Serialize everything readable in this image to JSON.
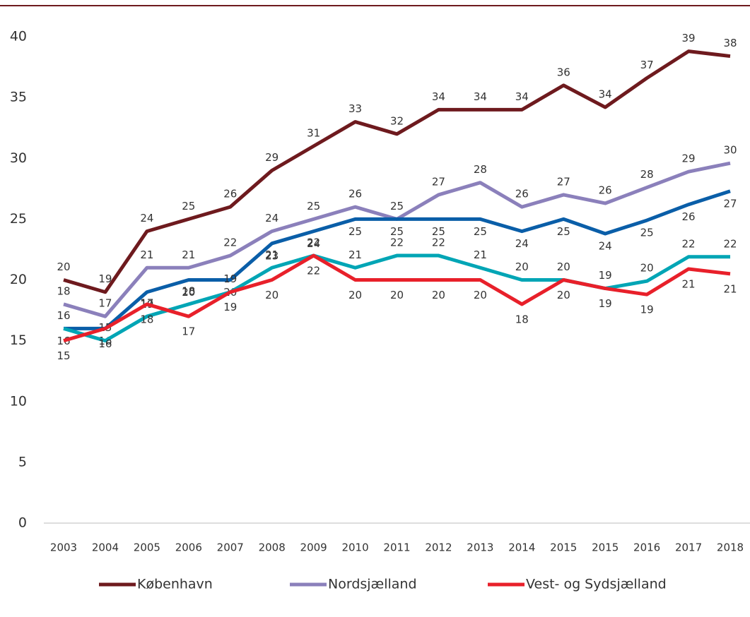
{
  "chart_data": {
    "type": "line",
    "categories": [
      "2003",
      "2004",
      "2005",
      "2006",
      "2007",
      "2008",
      "2009",
      "2010",
      "2011",
      "2012",
      "2013",
      "2014",
      "2015",
      "2015",
      "2016",
      "2017",
      "2018"
    ],
    "ylim": [
      0,
      40
    ],
    "yticks": [
      0,
      5,
      10,
      15,
      20,
      25,
      30,
      35,
      40
    ],
    "grid": false,
    "legend": "bottom",
    "series": [
      {
        "name": "København",
        "color": "#6e1a1e",
        "values": [
          20,
          19,
          24,
          25,
          26,
          29,
          31,
          33,
          32,
          34,
          34,
          34,
          36,
          34.2,
          36.6,
          38.8,
          38.4
        ],
        "value_labels": [
          "20",
          "19",
          "24",
          "25",
          "26",
          "29",
          "31",
          "33",
          "32",
          "34",
          "34",
          "34",
          "36",
          "34",
          "37",
          "39",
          "38"
        ]
      },
      {
        "name": "Nordsjælland",
        "color": "#8b80bb",
        "values": [
          18,
          17,
          21,
          21,
          22,
          24,
          25,
          26,
          25,
          27,
          28,
          26,
          27,
          26.3,
          27.6,
          28.9,
          29.6
        ],
        "value_labels": [
          "18",
          "17",
          "21",
          "21",
          "22",
          "24",
          "25",
          "26",
          "25",
          "27",
          "28",
          "26",
          "27",
          "26",
          "28",
          "29",
          "30"
        ]
      },
      {
        "color": "#0a5ea8",
        "values": [
          16,
          16,
          19,
          20,
          20,
          23,
          24,
          25,
          25,
          25,
          25,
          24,
          25,
          23.8,
          24.9,
          26.2,
          27.3
        ],
        "value_labels": [
          "16",
          "16",
          "19",
          "20",
          "20",
          "23",
          "24",
          "25",
          "25",
          "25",
          "25",
          "24",
          "25",
          "24",
          "25",
          "26",
          "27"
        ]
      },
      {
        "color": "#00a5b5",
        "values": [
          16,
          15,
          17,
          18,
          19,
          21,
          22,
          21,
          22,
          22,
          21,
          20,
          20,
          19.3,
          19.9,
          21.9,
          21.9
        ],
        "value_labels": [
          "16",
          "15",
          "17",
          "18",
          "19",
          "21",
          "22",
          "21",
          "22",
          "22",
          "21",
          "20",
          "20",
          "19",
          "20",
          "22",
          "22"
        ]
      },
      {
        "name": "Vest- og Sydsjælland",
        "color": "#e8202a",
        "values": [
          15,
          16,
          18,
          17,
          19,
          20,
          22,
          20,
          20,
          20,
          20,
          18,
          20,
          19.3,
          18.8,
          20.9,
          20.5
        ],
        "value_labels": [
          "15",
          "16",
          "18",
          "17",
          "19",
          "20",
          "22",
          "20",
          "20",
          "20",
          "20",
          "18",
          "20",
          "19",
          "19",
          "21",
          "21"
        ]
      }
    ]
  }
}
